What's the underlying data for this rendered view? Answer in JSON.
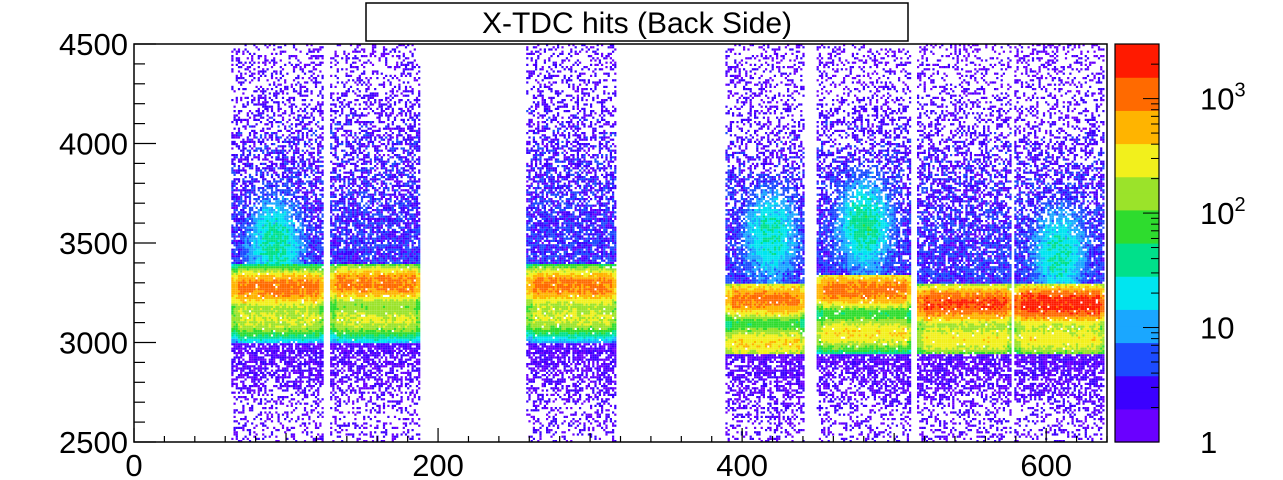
{
  "chart_data": {
    "type": "heatmap",
    "title": "X-TDC hits (Back Side)",
    "xlabel": "",
    "ylabel": "",
    "xlim": [
      0,
      640
    ],
    "ylim": [
      2500,
      4500
    ],
    "x_ticks": [
      "0",
      "200",
      "400",
      "600"
    ],
    "x_tick_values": [
      0,
      200,
      400,
      600
    ],
    "y_ticks": [
      "2500",
      "3000",
      "3500",
      "4000",
      "4500"
    ],
    "y_tick_values": [
      2500,
      3000,
      3500,
      4000,
      4500
    ],
    "z_scale": "log",
    "zlim": [
      1,
      3000
    ],
    "z_ticks": [
      "1",
      "10",
      "10^2",
      "10^3"
    ],
    "z_tick_values": [
      1,
      10,
      100,
      1000
    ],
    "colormap": [
      "#6a00ff",
      "#3b00ff",
      "#1c4bff",
      "#1aa7ff",
      "#00e5f0",
      "#00e08a",
      "#2edc2e",
      "#9be32a",
      "#f2f01c",
      "#ffb400",
      "#ff6a00",
      "#ff1a00"
    ],
    "strips": [
      {
        "x": [
          64,
          124
        ],
        "y": [
          2500,
          4500
        ],
        "dense_y": [
          3000,
          3400
        ],
        "bands": [
          {
            "y": 3280,
            "z": 1200
          },
          {
            "y": 3120,
            "z": 250
          }
        ],
        "hotspot": {
          "x": 92,
          "y": 3500,
          "z": 35
        }
      },
      {
        "x": [
          129,
          187
        ],
        "y": [
          2500,
          4500
        ],
        "dense_y": [
          3000,
          3400
        ],
        "bands": [
          {
            "y": 3300,
            "z": 1100
          },
          {
            "y": 3120,
            "z": 250
          }
        ],
        "hotspot": null
      },
      {
        "x": [
          258,
          316
        ],
        "y": [
          2500,
          4500
        ],
        "dense_y": [
          3000,
          3400
        ],
        "bands": [
          {
            "y": 3290,
            "z": 1100
          },
          {
            "y": 3130,
            "z": 250
          }
        ],
        "hotspot": null
      },
      {
        "x": [
          389,
          441
        ],
        "y": [
          2500,
          4500
        ],
        "dense_y": [
          2950,
          3300
        ],
        "bands": [
          {
            "y": 3220,
            "z": 1100
          },
          {
            "y": 3000,
            "z": 400
          }
        ],
        "hotspot": {
          "x": 418,
          "y": 3550,
          "z": 30
        }
      },
      {
        "x": [
          449,
          510
        ],
        "y": [
          2500,
          4500
        ],
        "dense_y": [
          2950,
          3350
        ],
        "bands": [
          {
            "y": 3270,
            "z": 1200
          },
          {
            "y": 3050,
            "z": 400
          }
        ],
        "hotspot": {
          "x": 480,
          "y": 3600,
          "z": 40
        }
      },
      {
        "x": [
          515,
          576
        ],
        "y": [
          2500,
          4500
        ],
        "dense_y": [
          2950,
          3300
        ],
        "bands": [
          {
            "y": 3200,
            "z": 1800
          },
          {
            "y": 3020,
            "z": 350
          }
        ],
        "hotspot": null
      },
      {
        "x": [
          579,
          638
        ],
        "y": [
          2500,
          4500
        ],
        "dense_y": [
          2950,
          3300
        ],
        "bands": [
          {
            "y": 3200,
            "z": 2500
          },
          {
            "y": 3020,
            "z": 350
          }
        ],
        "hotspot": {
          "x": 608,
          "y": 3450,
          "z": 30
        }
      }
    ]
  }
}
